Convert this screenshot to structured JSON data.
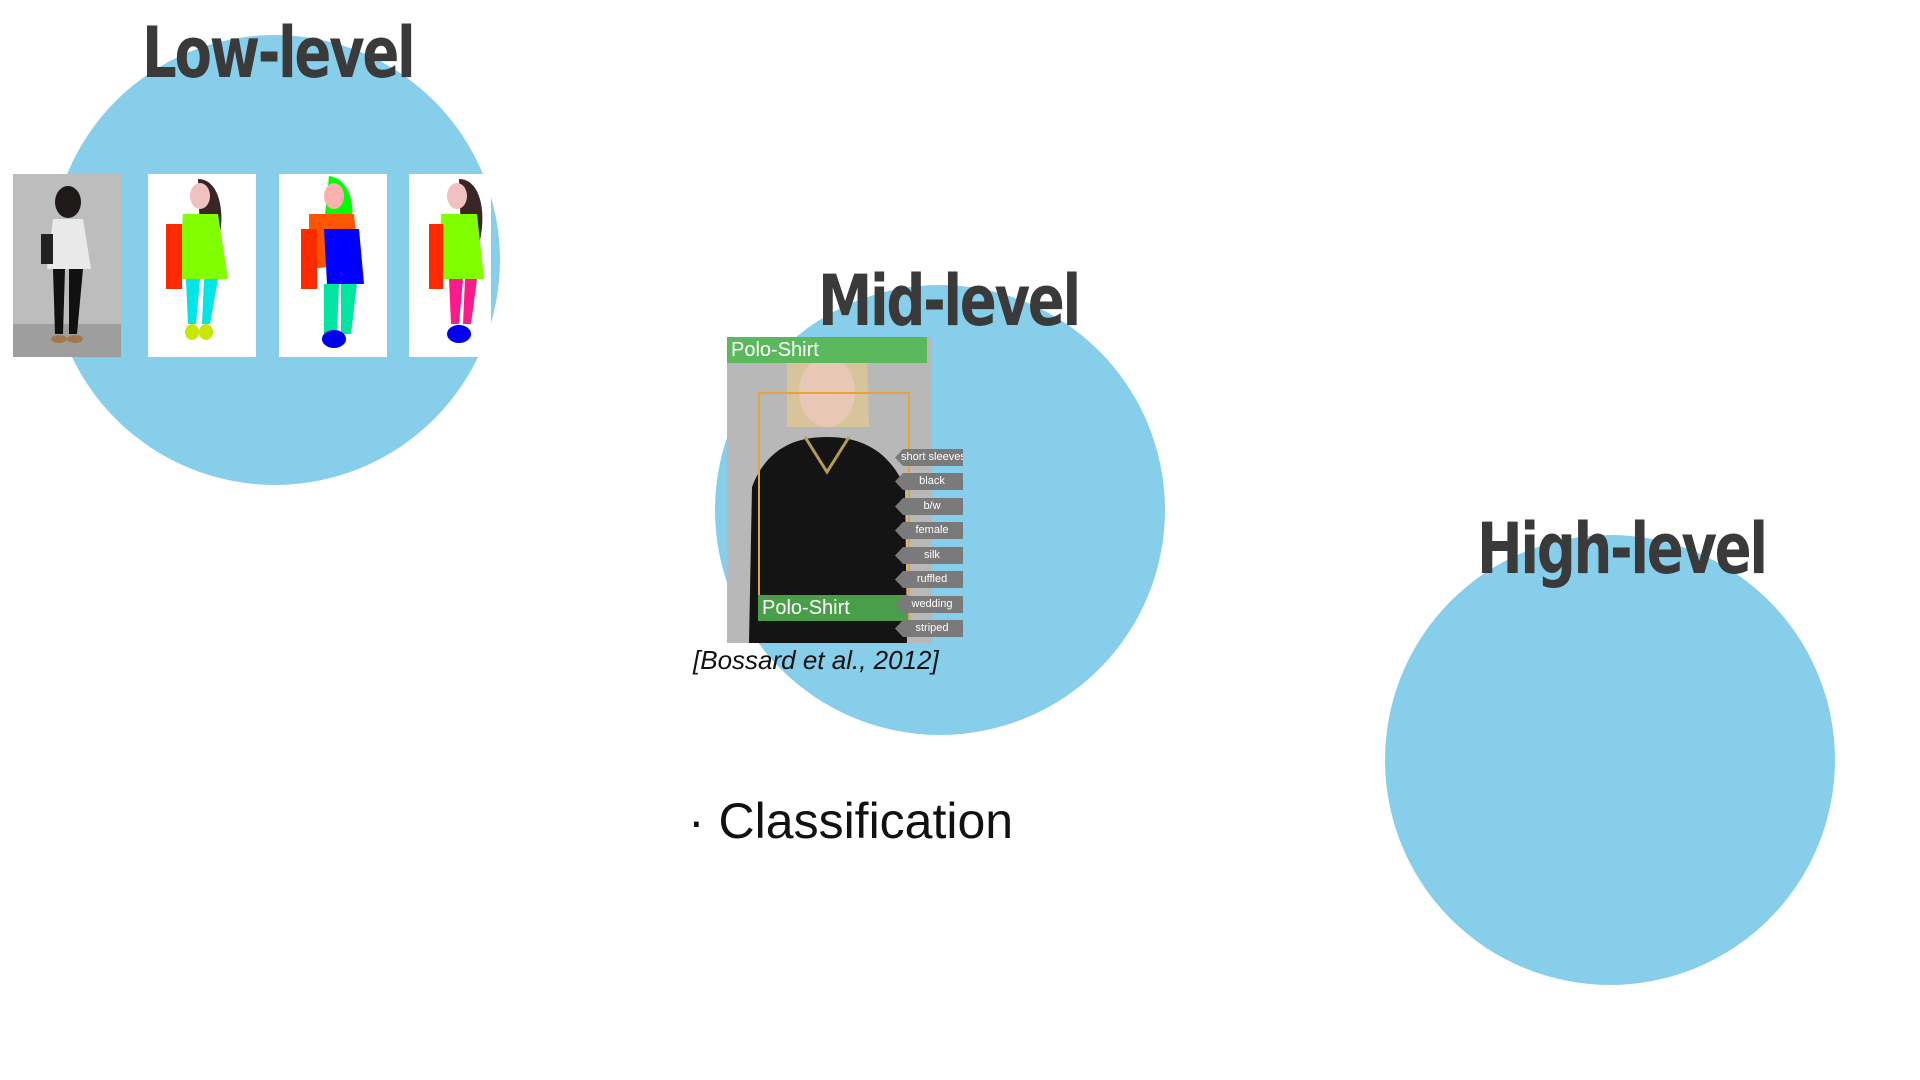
{
  "levels": {
    "low": "Low-level",
    "mid": "Mid-level",
    "high": "High-level"
  },
  "mid_figure": {
    "label_top": "Polo-Shirt",
    "label_bottom": "Polo-Shirt",
    "tags": [
      "short sleeves",
      "black",
      "b/w",
      "female",
      "silk",
      "ruffled",
      "wedding",
      "striped"
    ],
    "citation": "[Bossard et al., 2012]"
  },
  "bullets": [
    "· Classification"
  ],
  "colors": {
    "circle": "#87ceeb",
    "title": "#3a3a3a",
    "label_green": "#5cb85c",
    "box_orange": "#e8a23a"
  }
}
